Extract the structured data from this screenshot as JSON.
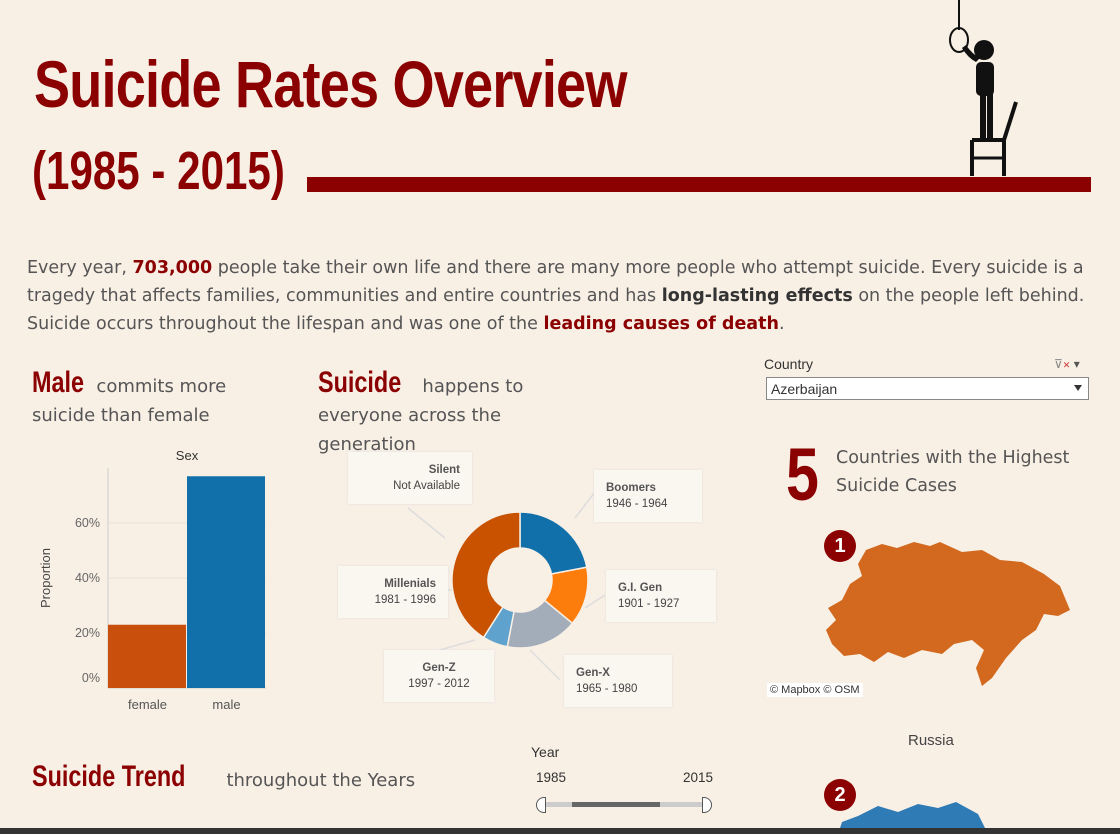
{
  "header": {
    "title": "Suicide Rates Overview",
    "years": "(1985 - 2015)"
  },
  "intro": {
    "p1": "Every year, ",
    "num": "703,000",
    "p2": " people take their own life and there are many more people who attempt suicide. Every suicide is a tragedy that affects families, communities and entire countries and has ",
    "hl1": "long-lasting effects",
    "p3": " on the people left behind. Suicide occurs throughout the lifespan and was one of the ",
    "hl2": "leading causes of death",
    "p4": "."
  },
  "sex_section": {
    "keyword": "Male",
    "rest": " commits more suicide than female"
  },
  "gen_section": {
    "keyword": "Suicide",
    "rest": " happens to everyone across the generation"
  },
  "trend_section": {
    "keyword": "Suicide Trend",
    "rest": " throughout the Years"
  },
  "filter": {
    "label": "Country",
    "value": "Azerbaijan"
  },
  "top_countries": {
    "number": "5",
    "caption": "Countries with the Highest Suicide Cases",
    "rank1": "1",
    "rank2": "2",
    "country1": "Russia",
    "map_credit": "© Mapbox  © OSM"
  },
  "year_filter": {
    "label": "Year",
    "min": "1985",
    "max": "2015",
    "range": [
      1985,
      2015
    ]
  },
  "chart_data": [
    {
      "type": "bar",
      "title": "Sex",
      "ylabel": "Proportion",
      "categories": [
        "female",
        "male"
      ],
      "values": [
        0.23,
        0.77
      ],
      "colors": [
        "#c94f0d",
        "#1170aa"
      ],
      "ylim": [
        0,
        0.8
      ],
      "yticks": [
        "0%",
        "20%",
        "40%",
        "60%"
      ],
      "grid": true
    },
    {
      "type": "pie",
      "donut": true,
      "slices": [
        {
          "name": "Boomers",
          "years": "1946 - 1964",
          "value": 22,
          "color": "#1170aa"
        },
        {
          "name": "G.I. Gen",
          "years": "1901 - 1927",
          "value": 14,
          "color": "#fc7d0b"
        },
        {
          "name": "Gen-X",
          "years": "1965 - 1980",
          "value": 17,
          "color": "#a3acb9"
        },
        {
          "name": "Gen-Z",
          "years": "1997 - 2012",
          "value": 6,
          "color": "#5fa2ce"
        },
        {
          "name": "Millenials",
          "years": "1981 - 1996",
          "value": 41,
          "color": "#c85200"
        },
        {
          "name": "Silent",
          "years": "Not Available",
          "value": 0,
          "color": "#57606c"
        }
      ]
    }
  ],
  "colors": {
    "accent": "#8b0000",
    "background": "#f8efe5"
  },
  "icons": {
    "header": "hanging-figure-icon",
    "filter": "clear-filter-icon"
  }
}
